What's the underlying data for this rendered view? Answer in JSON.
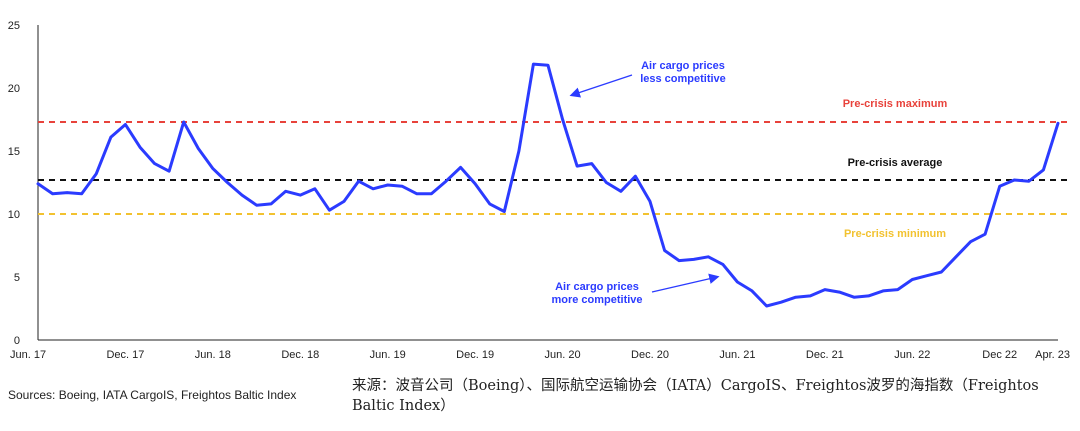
{
  "chart_data": {
    "type": "line",
    "ylim": [
      0,
      25
    ],
    "yticks": [
      0,
      5,
      10,
      15,
      20,
      25
    ],
    "xticks": [
      "Jun. 17",
      "Dec. 17",
      "Jun. 18",
      "Dec. 18",
      "Jun. 19",
      "Dec. 19",
      "Jun. 20",
      "Dec. 20",
      "Jun. 21",
      "Dec. 21",
      "Jun. 22",
      "Dec 22",
      "Apr. 23"
    ],
    "xtick_index": [
      0,
      6,
      12,
      18,
      24,
      30,
      36,
      42,
      48,
      54,
      60,
      66,
      70
    ],
    "series": [
      {
        "color": "#2b3bff",
        "x": [
          "2017-06",
          "2017-07",
          "2017-08",
          "2017-09",
          "2017-10",
          "2017-11",
          "2017-12",
          "2018-01",
          "2018-02",
          "2018-03",
          "2018-04",
          "2018-05",
          "2018-06",
          "2018-07",
          "2018-08",
          "2018-09",
          "2018-10",
          "2018-11",
          "2018-12",
          "2019-01",
          "2019-02",
          "2019-03",
          "2019-04",
          "2019-05",
          "2019-06",
          "2019-07",
          "2019-08",
          "2019-09",
          "2019-10",
          "2019-11",
          "2019-12",
          "2020-01",
          "2020-02",
          "2020-03",
          "2020-04",
          "2020-05",
          "2020-06",
          "2020-07",
          "2020-08",
          "2020-09",
          "2020-10",
          "2020-11",
          "2020-12",
          "2021-01",
          "2021-02",
          "2021-03",
          "2021-04",
          "2021-05",
          "2021-06",
          "2021-07",
          "2021-08",
          "2021-09",
          "2021-10",
          "2021-11",
          "2021-12",
          "2022-01",
          "2022-02",
          "2022-03",
          "2022-04",
          "2022-05",
          "2022-06",
          "2022-07",
          "2022-08",
          "2022-09",
          "2022-10",
          "2022-11",
          "2022-12",
          "2023-01",
          "2023-02",
          "2023-03",
          "2023-04"
        ],
        "values": [
          12.4,
          11.6,
          11.7,
          11.6,
          13.2,
          16.1,
          17.1,
          15.3,
          14.0,
          13.4,
          17.3,
          15.2,
          13.6,
          12.5,
          11.5,
          10.7,
          10.8,
          11.8,
          11.5,
          12.0,
          10.3,
          11.0,
          12.6,
          12.0,
          12.3,
          12.2,
          11.6,
          11.6,
          12.6,
          13.7,
          12.4,
          10.8,
          10.2,
          15.0,
          21.9,
          21.8,
          17.5,
          13.8,
          14.0,
          12.5,
          11.8,
          13.0,
          11.0,
          7.1,
          6.3,
          6.4,
          6.6,
          6.0,
          4.6,
          3.9,
          2.7,
          3.0,
          3.4,
          3.5,
          4.0,
          3.8,
          3.4,
          3.5,
          3.9,
          4.0,
          4.8,
          5.1,
          5.4,
          6.6,
          7.8,
          8.4,
          12.2,
          12.7,
          12.6,
          13.5,
          17.2
        ]
      }
    ],
    "reference_lines": [
      {
        "label": "Pre-crisis maximum",
        "value": 17.3,
        "color": "#e8423b"
      },
      {
        "label": "Pre-crisis average",
        "value": 12.7,
        "color": "#111111"
      },
      {
        "label": "Pre-crisis minimum",
        "value": 10.0,
        "color": "#f2c230"
      }
    ],
    "annotations": [
      {
        "lines": [
          "Air cargo prices",
          "less competitive"
        ],
        "color": "#2b3bff"
      },
      {
        "lines": [
          "Air cargo prices",
          "more competitive"
        ],
        "color": "#2b3bff"
      }
    ],
    "grid": false,
    "legend": "none"
  },
  "footer": {
    "source": "Sources: Boeing, IATA CargoIS, Freightos Baltic Index",
    "source_cn": "来源：波音公司（Boeing）、国际航空运输协会（IATA）CargoIS、Freightos波罗的海指数（Freightos Baltic Index）"
  }
}
